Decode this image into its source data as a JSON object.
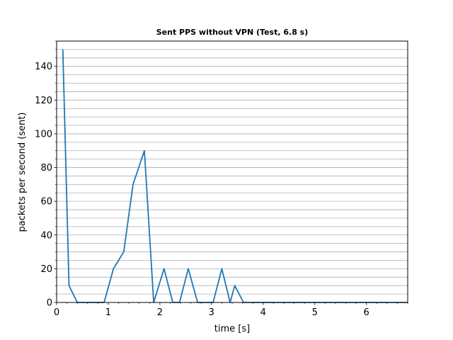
{
  "chart_data": {
    "type": "line",
    "title": "Sent PPS without VPN (Test, 6.8 s)",
    "xlabel": "time [s]",
    "ylabel": "packets per second (sent)",
    "xlim": [
      0,
      6.8
    ],
    "ylim": [
      0,
      155
    ],
    "xticks": [
      "0",
      "1",
      "2",
      "3",
      "4",
      "5",
      "6"
    ],
    "yticks": [
      "0",
      "20",
      "40",
      "60",
      "80",
      "100",
      "120",
      "140"
    ],
    "grid": "horizontal minor gridlines every 5",
    "series": [
      {
        "color": "#1f77b4",
        "x": [
          0.12,
          0.24,
          0.4,
          0.55,
          0.7,
          0.92,
          1.1,
          1.3,
          1.48,
          1.7,
          1.88,
          2.08,
          2.25,
          2.38,
          2.55,
          2.73,
          2.86,
          3.03,
          3.2,
          3.36,
          3.45,
          3.62,
          3.8,
          4.5,
          5.5,
          6.8
        ],
        "y": [
          150,
          10,
          0,
          0,
          0,
          0,
          20,
          30,
          70,
          90,
          0,
          20,
          0,
          0,
          20,
          0,
          0,
          0,
          20,
          0,
          10,
          0,
          0,
          0,
          0,
          0
        ]
      }
    ]
  }
}
